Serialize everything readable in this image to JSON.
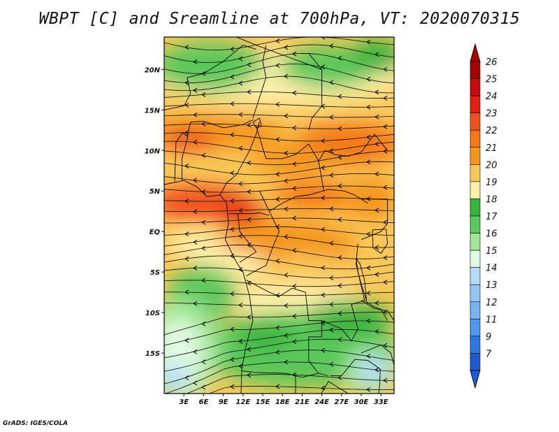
{
  "title": "WBPT [C] and Sreamline at 700hPa, VT: 2020070315",
  "credit": "GrADS: IGES/COLA",
  "map": {
    "lon_range": [
      0,
      35
    ],
    "lat_range": [
      -20,
      24
    ],
    "lon_ticks": [
      {
        "value": 3,
        "label": "3E"
      },
      {
        "value": 6,
        "label": "6E"
      },
      {
        "value": 9,
        "label": "9E"
      },
      {
        "value": 12,
        "label": "12E"
      },
      {
        "value": 15,
        "label": "15E"
      },
      {
        "value": 18,
        "label": "18E"
      },
      {
        "value": 21,
        "label": "21E"
      },
      {
        "value": 24,
        "label": "24E"
      },
      {
        "value": 27,
        "label": "27E"
      },
      {
        "value": 30,
        "label": "30E"
      },
      {
        "value": 33,
        "label": "33E"
      }
    ],
    "lat_ticks": [
      {
        "value": 20,
        "label": "20N"
      },
      {
        "value": 15,
        "label": "15N"
      },
      {
        "value": 10,
        "label": "10N"
      },
      {
        "value": 5,
        "label": "5N"
      },
      {
        "value": 0,
        "label": "EQ"
      },
      {
        "value": -5,
        "label": "5S"
      },
      {
        "value": -10,
        "label": "10S"
      },
      {
        "value": -15,
        "label": "15S"
      }
    ],
    "field_regions": [
      {
        "name": "northwest-green",
        "level": 17,
        "lon": 4,
        "lat": 21
      },
      {
        "name": "north-green-band",
        "level": 17,
        "lon": 22,
        "lat": 21
      },
      {
        "name": "warm-belt-west",
        "level": 22,
        "lon": 6,
        "lat": 13
      },
      {
        "name": "warm-belt-east",
        "level": 22,
        "lon": 29,
        "lat": 12
      },
      {
        "name": "hot-gulf",
        "level": 23,
        "lon": 6,
        "lat": 5
      },
      {
        "name": "central-congo",
        "level": 21,
        "lon": 20,
        "lat": -3
      },
      {
        "name": "southwest-cool",
        "level": 15,
        "lon": 3,
        "lat": -15
      },
      {
        "name": "southeast-cool",
        "level": 14,
        "lon": 31,
        "lat": -17
      },
      {
        "name": "south-green-band",
        "level": 17,
        "lon": 20,
        "lat": -13
      }
    ]
  },
  "colorbar": {
    "levels": [
      {
        "label": "26",
        "color": "#a50000"
      },
      {
        "label": "25",
        "color": "#c80a0a"
      },
      {
        "label": "24",
        "color": "#e61e0f"
      },
      {
        "label": "23",
        "color": "#f0501e"
      },
      {
        "label": "22",
        "color": "#f57814"
      },
      {
        "label": "21",
        "color": "#f5961e"
      },
      {
        "label": "20",
        "color": "#fac85a"
      },
      {
        "label": "19",
        "color": "#fff0aa"
      },
      {
        "label": "18",
        "color": "#37b43c"
      },
      {
        "label": "17",
        "color": "#5ac85a"
      },
      {
        "label": "16",
        "color": "#a0e696"
      },
      {
        "label": "15",
        "color": "#e1fae1"
      },
      {
        "label": "14",
        "color": "#b4dcfa"
      },
      {
        "label": "13",
        "color": "#96c8f5"
      },
      {
        "label": "12",
        "color": "#78b4f0"
      },
      {
        "label": "11",
        "color": "#5096eb"
      },
      {
        "label": "9",
        "color": "#2d78e1"
      },
      {
        "label": "7",
        "color": "#1e5ad2"
      }
    ]
  },
  "streamline_direction": "westward (easterly flow)"
}
